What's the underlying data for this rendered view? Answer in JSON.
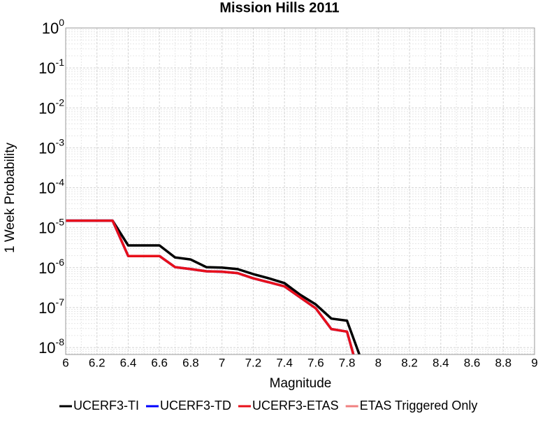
{
  "chart_data": {
    "type": "line",
    "title": "Mission Hills 2011",
    "x_label": "Magnitude",
    "y_label": "1 Week Probability",
    "x": [
      6.0,
      6.1,
      6.2,
      6.3,
      6.4,
      6.5,
      6.6,
      6.7,
      6.8,
      6.9,
      7.0,
      7.1,
      7.2,
      7.3,
      7.4,
      7.5,
      7.6,
      7.7,
      7.8,
      7.9
    ],
    "series": [
      {
        "name": "UCERF3-TI",
        "color": "#000000",
        "values": [
          1.5e-05,
          1.5e-05,
          1.5e-05,
          1.5e-05,
          3.6e-06,
          3.6e-06,
          3.6e-06,
          1.8e-06,
          1.6e-06,
          1.03e-06,
          1e-06,
          9.2e-07,
          6.9e-07,
          5.4e-07,
          4.1e-07,
          2.1e-07,
          1.2e-07,
          5.3e-08,
          4.7e-08,
          4e-09
        ]
      },
      {
        "name": "UCERF3-TD",
        "color": "#0000ff",
        "values": [
          1.5e-05,
          1.5e-05,
          1.5e-05,
          1.5e-05,
          1.95e-06,
          1.95e-06,
          1.95e-06,
          1.03e-06,
          9.2e-07,
          8.1e-07,
          7.9e-07,
          7.3e-07,
          5.4e-07,
          4.3e-07,
          3.4e-07,
          1.8e-07,
          9.6e-08,
          2.9e-08,
          2.5e-08,
          1e-09
        ]
      },
      {
        "name": "UCERF3-ETAS",
        "color": "#e8101a",
        "values": [
          1.5e-05,
          1.5e-05,
          1.5e-05,
          1.5e-05,
          1.95e-06,
          1.95e-06,
          1.95e-06,
          1.03e-06,
          9.2e-07,
          8.1e-07,
          7.9e-07,
          7.3e-07,
          5.4e-07,
          4.3e-07,
          3.4e-07,
          1.8e-07,
          9.6e-08,
          2.9e-08,
          2.5e-08,
          1e-09
        ]
      },
      {
        "name": "ETAS Triggered Only",
        "color": "#f08080",
        "values": [
          null,
          null,
          null,
          null,
          null,
          null,
          null,
          null,
          null,
          null,
          null,
          null,
          null,
          null,
          null,
          null,
          null,
          null,
          null,
          null
        ]
      }
    ],
    "xlim": [
      6,
      9
    ],
    "xticks": [
      6,
      6.2,
      6.4,
      6.6,
      6.8,
      7,
      7.2,
      7.4,
      7.6,
      7.8,
      8,
      8.2,
      8.4,
      8.6,
      8.8,
      9
    ],
    "ylim": [
      6.7e-09,
      1
    ],
    "y_log": true,
    "yticks": [
      {
        "value": 1e-08,
        "label": "10^-8"
      },
      {
        "value": 1e-07,
        "label": "10^-7"
      },
      {
        "value": 1e-06,
        "label": "10^-6"
      },
      {
        "value": 1e-05,
        "label": "10^-5"
      },
      {
        "value": 0.0001,
        "label": "10^-4"
      },
      {
        "value": 0.001,
        "label": "10^-3"
      },
      {
        "value": 0.01,
        "label": "10^-2"
      },
      {
        "value": 0.1,
        "label": "10^-1"
      },
      {
        "value": 1,
        "label": "10^0"
      }
    ],
    "grid": true,
    "legend": "bottom"
  }
}
